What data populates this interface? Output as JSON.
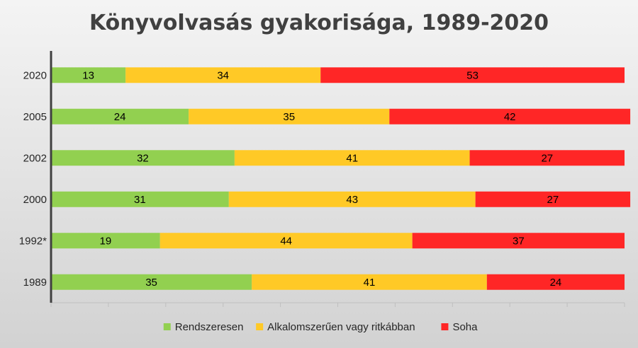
{
  "chart_data": {
    "type": "bar",
    "orientation": "horizontal",
    "stacked": true,
    "title": "Könyvolvasás gyakorisága, 1989-2020",
    "categories": [
      "2020",
      "2005",
      "2002",
      "2000",
      "1992*",
      "1989"
    ],
    "series": [
      {
        "name": "Rendszeresen",
        "color": "#92d050",
        "values": [
          13,
          24,
          32,
          31,
          19,
          35
        ]
      },
      {
        "name": "Alkalomszerűen vagy ritkábban",
        "color": "#ffc926",
        "values": [
          34,
          35,
          41,
          43,
          44,
          41
        ]
      },
      {
        "name": "Soha",
        "color": "#ff2626",
        "values": [
          53,
          42,
          27,
          27,
          37,
          24
        ]
      }
    ],
    "xlim": [
      0,
      100
    ],
    "grid": false,
    "legend_position": "bottom"
  }
}
